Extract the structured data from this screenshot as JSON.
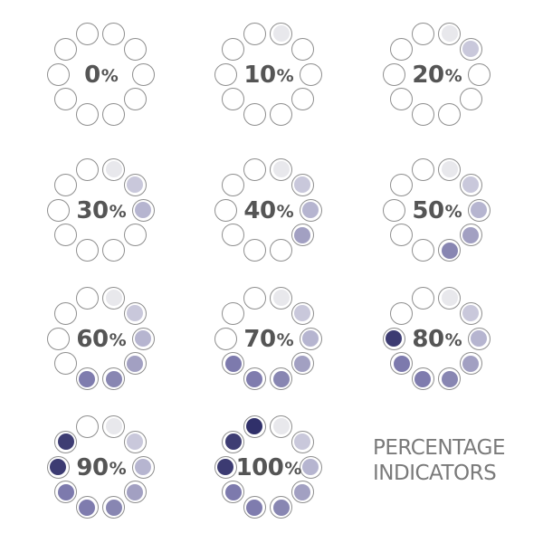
{
  "dot_fill_colors": [
    "#e8e8ec",
    "#c9c8db",
    "#b6b5d0",
    "#a2a0c2",
    "#8886b2",
    "#7f7cae",
    "#7d7aad",
    "#3c3b72",
    "#3e3d73",
    "#30306a"
  ],
  "indicators": [
    {
      "number": "0",
      "unit": "%",
      "filled_dots": 0
    },
    {
      "number": "10",
      "unit": "%",
      "filled_dots": 1
    },
    {
      "number": "20",
      "unit": "%",
      "filled_dots": 2
    },
    {
      "number": "30",
      "unit": "%",
      "filled_dots": 3
    },
    {
      "number": "40",
      "unit": "%",
      "filled_dots": 4
    },
    {
      "number": "50",
      "unit": "%",
      "filled_dots": 5
    },
    {
      "number": "60",
      "unit": "%",
      "filled_dots": 6
    },
    {
      "number": "70",
      "unit": "%",
      "filled_dots": 7
    },
    {
      "number": "80",
      "unit": "%",
      "filled_dots": 8
    },
    {
      "number": "90",
      "unit": "%",
      "filled_dots": 9
    },
    {
      "number": "100",
      "unit": "%",
      "filled_dots": 10
    }
  ],
  "caption": {
    "line1": "PERCENTAGE",
    "line2": "INDICATORS"
  }
}
